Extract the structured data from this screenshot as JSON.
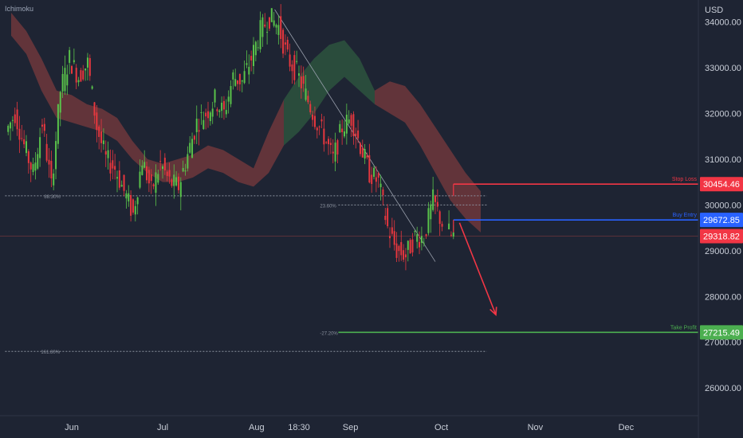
{
  "indicator_label": "Ichimoku",
  "chart_data": {
    "type": "candlestick",
    "currency_label": "USD",
    "y_ticks": [
      34000,
      33000,
      32000,
      31000,
      30000,
      29000,
      28000,
      27000,
      26000
    ],
    "y_tick_labels": [
      "34000.00",
      "33000.00",
      "32000.00",
      "31000.00",
      "30000.00",
      "29000.00",
      "28000.00",
      "27000.00",
      "26000.00"
    ],
    "ylim": [
      25800,
      34700
    ],
    "x_ticks": [
      {
        "label": "Jun",
        "day": 0
      },
      {
        "label": "Jul",
        "day": 30
      },
      {
        "label": "Aug",
        "day": 61
      },
      {
        "label": "18:30",
        "day": 75
      },
      {
        "label": "Sep",
        "day": 92
      },
      {
        "label": "Oct",
        "day": 122
      },
      {
        "label": "Nov",
        "day": 153
      },
      {
        "label": "Dec",
        "day": 183
      }
    ],
    "price_path": [
      [
        -21,
        31600
      ],
      [
        -18,
        32000
      ],
      [
        -15,
        31300
      ],
      [
        -12,
        30700
      ],
      [
        -9,
        31800
      ],
      [
        -6,
        30400
      ],
      [
        -3,
        32500
      ],
      [
        0,
        33200
      ],
      [
        3,
        32800
      ],
      [
        6,
        33100
      ],
      [
        9,
        31700
      ],
      [
        12,
        31000
      ],
      [
        15,
        30800
      ],
      [
        18,
        30300
      ],
      [
        21,
        29800
      ],
      [
        24,
        31000
      ],
      [
        27,
        30300
      ],
      [
        30,
        30900
      ],
      [
        33,
        30500
      ],
      [
        36,
        30400
      ],
      [
        39,
        31100
      ],
      [
        42,
        31800
      ],
      [
        45,
        32000
      ],
      [
        48,
        32300
      ],
      [
        51,
        32000
      ],
      [
        54,
        32800
      ],
      [
        57,
        32700
      ],
      [
        60,
        33200
      ],
      [
        63,
        33800
      ],
      [
        66,
        34100
      ],
      [
        69,
        33900
      ],
      [
        72,
        33200
      ],
      [
        75,
        32900
      ],
      [
        78,
        32400
      ],
      [
        81,
        31900
      ],
      [
        84,
        31500
      ],
      [
        87,
        31000
      ],
      [
        90,
        31700
      ],
      [
        93,
        31900
      ],
      [
        96,
        31300
      ],
      [
        99,
        30700
      ],
      [
        102,
        30500
      ],
      [
        105,
        29500
      ],
      [
        108,
        29000
      ],
      [
        111,
        28900
      ],
      [
        114,
        29300
      ],
      [
        117,
        29300
      ],
      [
        120,
        30100
      ],
      [
        123,
        29600
      ],
      [
        126,
        29320
      ]
    ],
    "cloud": [
      [
        -20,
        34200,
        33700
      ],
      [
        -15,
        33800,
        33300
      ],
      [
        -10,
        33200,
        32500
      ],
      [
        -5,
        32500,
        31900
      ],
      [
        0,
        32400,
        31800
      ],
      [
        5,
        32200,
        31700
      ],
      [
        10,
        32100,
        31600
      ],
      [
        15,
        31900,
        31400
      ],
      [
        20,
        31400,
        31000
      ],
      [
        25,
        31000,
        30700
      ],
      [
        30,
        30900,
        30500
      ],
      [
        35,
        31000,
        30500
      ],
      [
        40,
        31100,
        30600
      ],
      [
        45,
        31300,
        30800
      ],
      [
        50,
        31200,
        30700
      ],
      [
        55,
        31000,
        30500
      ],
      [
        60,
        30800,
        30400
      ],
      [
        65,
        31600,
        30700
      ],
      [
        70,
        32300,
        31300
      ],
      [
        75,
        32800,
        31600
      ],
      [
        80,
        33200,
        32000
      ],
      [
        85,
        33500,
        32500
      ],
      [
        90,
        33600,
        32800
      ],
      [
        95,
        33200,
        32500
      ],
      [
        100,
        32500,
        32200
      ],
      [
        105,
        32700,
        32000
      ],
      [
        110,
        32600,
        31800
      ],
      [
        115,
        32200,
        31300
      ],
      [
        120,
        31700,
        30700
      ],
      [
        125,
        31200,
        30100
      ],
      [
        130,
        30700,
        29700
      ],
      [
        135,
        30300,
        29400
      ]
    ],
    "fib_levels": [
      {
        "label": "88.30%",
        "price": 30200,
        "from_day": -22,
        "to_day": 137
      },
      {
        "label": "23.60%",
        "price": 30000,
        "from_day": 88,
        "to_day": 137
      },
      {
        "label": "-27.20%",
        "price": 27215.49,
        "from_day": 88,
        "to_day": 200
      },
      {
        "label": "161.80%",
        "price": 26800,
        "from_day": -22,
        "to_day": 137
      }
    ],
    "fib_diagonal": [
      [
        67,
        34270
      ],
      [
        120,
        28760
      ]
    ],
    "current_price_line": 29318.82,
    "trade_levels": [
      {
        "name": "Stop Loss",
        "price": 30454.46,
        "price_label": "30454.46",
        "color": "#f23645",
        "from_day": 126
      },
      {
        "name": "Buy Entry",
        "price": 29672.85,
        "price_label": "29672.85",
        "color": "#2962ff",
        "from_day": 126
      },
      {
        "name": "Take Profit",
        "price": 27215.49,
        "price_label": "27215.49",
        "color": "#4caf50",
        "from_day": 88
      }
    ],
    "current_price_label": "29318.82",
    "current_price_color": "#f23645",
    "arrow": {
      "from": [
        128,
        29610
      ],
      "to": [
        140,
        27600
      ],
      "color": "#f23645"
    },
    "colors": {
      "background": "#1e2433",
      "up_candle": "#59c24a",
      "down_candle": "#e8373e",
      "cloud_bear": "#7a3a3d",
      "cloud_bull": "#2f5a40",
      "fib_line": "#8a919e"
    }
  }
}
